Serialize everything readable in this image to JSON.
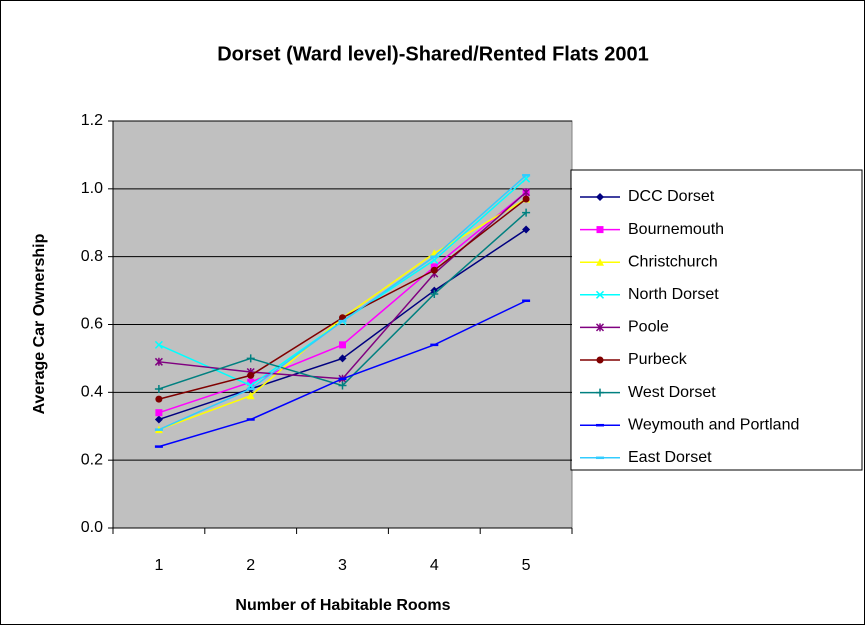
{
  "chart_data": {
    "type": "line",
    "title": "Dorset (Ward level)-Shared/Rented Flats 2001",
    "x_label": "Number of Habitable Rooms",
    "y_label": "Average Car Ownership",
    "categories": [
      1,
      2,
      3,
      4,
      5
    ],
    "ylim": [
      0,
      1.2
    ],
    "yticks": [
      {
        "value": 0,
        "label": "0.0"
      },
      0.2,
      0.4,
      0.6,
      0.8,
      {
        "value": 1,
        "label": "1.0"
      },
      1.2
    ],
    "grid": true,
    "legend": "right",
    "series": [
      {
        "name": "DCC Dorset",
        "color": "#000080",
        "marker": "diamond",
        "values": [
          0.32,
          0.41,
          0.5,
          0.7,
          0.88
        ]
      },
      {
        "name": "Bournemouth",
        "color": "#ff00ff",
        "marker": "square",
        "values": [
          0.34,
          0.43,
          0.54,
          0.77,
          0.99
        ]
      },
      {
        "name": "Christchurch",
        "color": "#ffff00",
        "marker": "triangle",
        "values": [
          0.29,
          0.39,
          0.62,
          0.81,
          0.97
        ]
      },
      {
        "name": "North Dorset",
        "color": "#00ffff",
        "marker": "x",
        "values": [
          0.54,
          0.42,
          0.61,
          0.79,
          1.03
        ]
      },
      {
        "name": "Poole",
        "color": "#800080",
        "marker": "star",
        "values": [
          0.49,
          0.46,
          0.44,
          0.75,
          0.99
        ]
      },
      {
        "name": "Purbeck",
        "color": "#800000",
        "marker": "circle",
        "values": [
          0.38,
          0.45,
          0.62,
          0.76,
          0.97
        ]
      },
      {
        "name": "West Dorset",
        "color": "#008080",
        "marker": "plus",
        "values": [
          0.41,
          0.5,
          0.42,
          0.69,
          0.93
        ]
      },
      {
        "name": "Weymouth and Portland",
        "color": "#0000ff",
        "marker": "dash",
        "values": [
          0.24,
          0.32,
          0.44,
          0.54,
          0.67
        ]
      },
      {
        "name": "East Dorset",
        "color": "#33ccff",
        "marker": "dash",
        "values": [
          0.29,
          0.41,
          0.61,
          0.8,
          1.04
        ]
      }
    ]
  }
}
